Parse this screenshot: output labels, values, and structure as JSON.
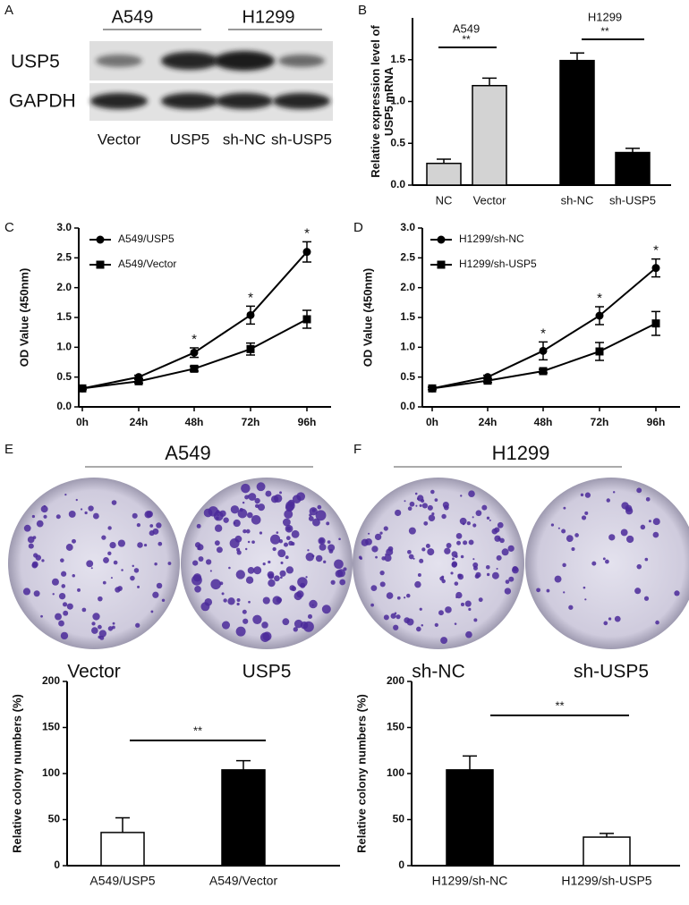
{
  "panel_labels": [
    "A",
    "B",
    "C",
    "D",
    "E",
    "F"
  ],
  "blot": {
    "groups": [
      "A549",
      "H1299"
    ],
    "rows": [
      "USP5",
      "GAPDH"
    ],
    "lanes": [
      "Vector",
      "USP5",
      "sh-NC",
      "sh-USP5"
    ]
  },
  "colony": {
    "groups": [
      "A549",
      "H1299"
    ],
    "labels": [
      "Vector",
      "USP5",
      "sh-NC",
      "sh-USP5"
    ]
  },
  "chart_data": [
    {
      "type": "bar",
      "y_label": [
        "Relative expression level of",
        "USP5 mRNA"
      ],
      "categories": [
        "NC",
        "Vector",
        "sh-NC",
        "sh-USP5"
      ],
      "values": [
        0.26,
        1.19,
        1.49,
        0.39
      ],
      "errors": [
        0.05,
        0.09,
        0.09,
        0.05
      ],
      "colors": [
        "#d3d3d3",
        "#d3d3d3",
        "#000000",
        "#000000"
      ],
      "group_labels": [
        "A549",
        "H1299"
      ],
      "significance": [
        "**",
        "**"
      ],
      "ylim": [
        0,
        2
      ],
      "yticks": [
        {
          "value": 0,
          "label": "0.0"
        },
        0.5,
        {
          "value": 1,
          "label": "1.0"
        },
        1.5
      ]
    },
    {
      "type": "line",
      "y_label": [
        "OD Value (450nm)"
      ],
      "categories": [
        "0h",
        "24h",
        "48h",
        "72h",
        "96h"
      ],
      "series": [
        {
          "name": "A549/USP5",
          "marker": "circle",
          "values": [
            0.31,
            0.5,
            0.91,
            1.54,
            2.6
          ],
          "errors": [
            0.02,
            0.03,
            0.08,
            0.15,
            0.17
          ]
        },
        {
          "name": "A549/Vector",
          "marker": "square",
          "values": [
            0.31,
            0.43,
            0.64,
            0.97,
            1.47
          ],
          "errors": [
            0.02,
            0.03,
            0.04,
            0.1,
            0.15
          ]
        }
      ],
      "significance": [
        null,
        null,
        "*",
        "*",
        "*"
      ],
      "ylim": [
        0,
        3
      ],
      "yticks": [
        {
          "value": 0,
          "label": "0.0"
        },
        0.5,
        {
          "value": 1,
          "label": "1.0"
        },
        1.5,
        {
          "value": 2,
          "label": "2.0"
        },
        2.5,
        {
          "value": 3,
          "label": "3.0"
        }
      ]
    },
    {
      "type": "line",
      "y_label": [
        "OD Value (450nm)"
      ],
      "categories": [
        "0h",
        "24h",
        "48h",
        "72h",
        "96h"
      ],
      "series": [
        {
          "name": "H1299/sh-NC",
          "marker": "circle",
          "values": [
            0.31,
            0.5,
            0.94,
            1.53,
            2.33
          ],
          "errors": [
            0.02,
            0.03,
            0.15,
            0.15,
            0.15
          ]
        },
        {
          "name": "H1299/sh-USP5",
          "marker": "square",
          "values": [
            0.31,
            0.44,
            0.6,
            0.93,
            1.4
          ],
          "errors": [
            0.02,
            0.03,
            0.03,
            0.15,
            0.2
          ]
        }
      ],
      "significance": [
        null,
        null,
        "*",
        "*",
        "*"
      ],
      "ylim": [
        0,
        3
      ],
      "yticks": [
        {
          "value": 0,
          "label": "0.0"
        },
        0.5,
        {
          "value": 1,
          "label": "1.0"
        },
        1.5,
        {
          "value": 2,
          "label": "2.0"
        },
        2.5,
        {
          "value": 3,
          "label": "3.0"
        }
      ]
    },
    {
      "type": "bar",
      "y_label": [
        "Relative colony numbers (%)"
      ],
      "categories": [
        "A549/USP5",
        "A549/Vector"
      ],
      "values": [
        36,
        104
      ],
      "errors": [
        16,
        10
      ],
      "colors": [
        "#ffffff",
        "#000000"
      ],
      "significance": [
        "**"
      ],
      "ylim": [
        0,
        200
      ],
      "yticks": [
        0,
        50,
        100,
        150,
        200
      ]
    },
    {
      "type": "bar",
      "y_label": [
        "Relative colony numbers (%)"
      ],
      "categories": [
        "H1299/sh-NC",
        "H1299/sh-USP5"
      ],
      "values": [
        104,
        31
      ],
      "errors": [
        15,
        4
      ],
      "colors": [
        "#000000",
        "#ffffff"
      ],
      "significance": [
        "**"
      ],
      "ylim": [
        0,
        200
      ],
      "yticks": [
        0,
        50,
        100,
        150,
        200
      ]
    }
  ]
}
